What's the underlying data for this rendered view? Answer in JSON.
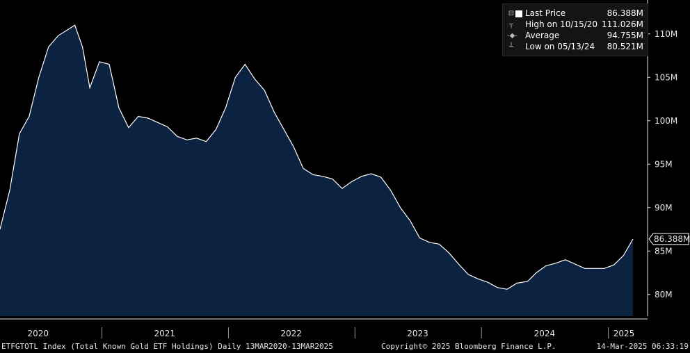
{
  "footer": {
    "left": "ETFGTOTL Index (Total Known Gold ETF Holdings)  Daily 13MAR2020-13MAR2025",
    "center": "Copyright© 2025 Bloomberg Finance L.P.",
    "right": "14-Mar-2025 06:33:19"
  },
  "legend": {
    "last_price_label": "Last Price",
    "last_price_value": "86.388M",
    "high_label": "High on 10/15/20",
    "high_value": "111.026M",
    "average_label": "Average",
    "average_value": "94.755M",
    "low_label": "Low on 05/13/24",
    "low_value": "80.521M"
  },
  "last_price_tag": "86.388M",
  "colors": {
    "fill": "#0b2240",
    "line": "#ffffff",
    "background": "#000000"
  },
  "chart_data": {
    "type": "area",
    "ylim": [
      77.5,
      113.5
    ],
    "yticks": [
      80,
      85,
      90,
      95,
      100,
      105,
      110
    ],
    "ytick_labels": [
      "80M",
      "85M",
      "90M",
      "95M",
      "100M",
      "105M",
      "110M"
    ],
    "x_labels": [
      "2020",
      "2021",
      "2022",
      "2023",
      "2024",
      "2025"
    ],
    "x_label_dates": [
      "2020-07-01",
      "2021-07-01",
      "2022-07-01",
      "2023-07-01",
      "2024-07-01",
      "2025-02-15"
    ],
    "x_dividers": [
      "2021-01-01",
      "2022-01-01",
      "2023-01-01",
      "2024-01-01",
      "2025-01-01"
    ],
    "xlim": [
      "2020-03-13",
      "2025-03-13"
    ],
    "x": [
      "2020-03-13",
      "2020-04-10",
      "2020-05-08",
      "2020-06-05",
      "2020-07-03",
      "2020-07-31",
      "2020-08-28",
      "2020-09-25",
      "2020-10-15",
      "2020-11-06",
      "2020-11-27",
      "2020-12-25",
      "2021-01-22",
      "2021-02-19",
      "2021-03-19",
      "2021-04-16",
      "2021-05-14",
      "2021-06-11",
      "2021-07-09",
      "2021-08-06",
      "2021-09-03",
      "2021-10-01",
      "2021-10-29",
      "2021-11-26",
      "2021-12-24",
      "2022-01-21",
      "2022-02-18",
      "2022-03-18",
      "2022-04-15",
      "2022-05-13",
      "2022-06-10",
      "2022-07-08",
      "2022-08-05",
      "2022-09-02",
      "2022-09-30",
      "2022-10-28",
      "2022-11-25",
      "2022-12-23",
      "2023-01-20",
      "2023-02-17",
      "2023-03-17",
      "2023-04-14",
      "2023-05-12",
      "2023-06-09",
      "2023-07-07",
      "2023-08-04",
      "2023-09-01",
      "2023-09-29",
      "2023-10-27",
      "2023-11-24",
      "2023-12-22",
      "2024-01-19",
      "2024-02-16",
      "2024-03-15",
      "2024-04-12",
      "2024-05-13",
      "2024-06-07",
      "2024-07-05",
      "2024-08-02",
      "2024-08-30",
      "2024-09-27",
      "2024-10-25",
      "2024-11-22",
      "2024-12-20",
      "2025-01-17",
      "2025-02-14",
      "2025-03-13"
    ],
    "values": [
      87.5,
      92.0,
      98.5,
      100.5,
      105.0,
      108.5,
      109.8,
      110.5,
      111.0,
      108.5,
      103.8,
      106.8,
      106.5,
      101.5,
      99.2,
      100.5,
      100.3,
      99.8,
      99.3,
      98.2,
      97.8,
      98.0,
      97.6,
      99.0,
      101.5,
      105.0,
      106.5,
      104.8,
      103.5,
      101.0,
      99.0,
      97.0,
      94.5,
      93.8,
      93.6,
      93.3,
      92.2,
      93.0,
      93.6,
      93.9,
      93.5,
      92.0,
      90.0,
      88.5,
      86.5,
      86.0,
      85.8,
      84.8,
      83.5,
      82.3,
      81.8,
      81.4,
      80.8,
      80.6,
      81.3,
      81.5,
      82.5,
      83.3,
      83.6,
      84.0,
      83.5,
      83.0,
      83.0,
      83.0,
      83.4,
      84.5,
      86.388
    ],
    "series_name": "Last Price"
  }
}
